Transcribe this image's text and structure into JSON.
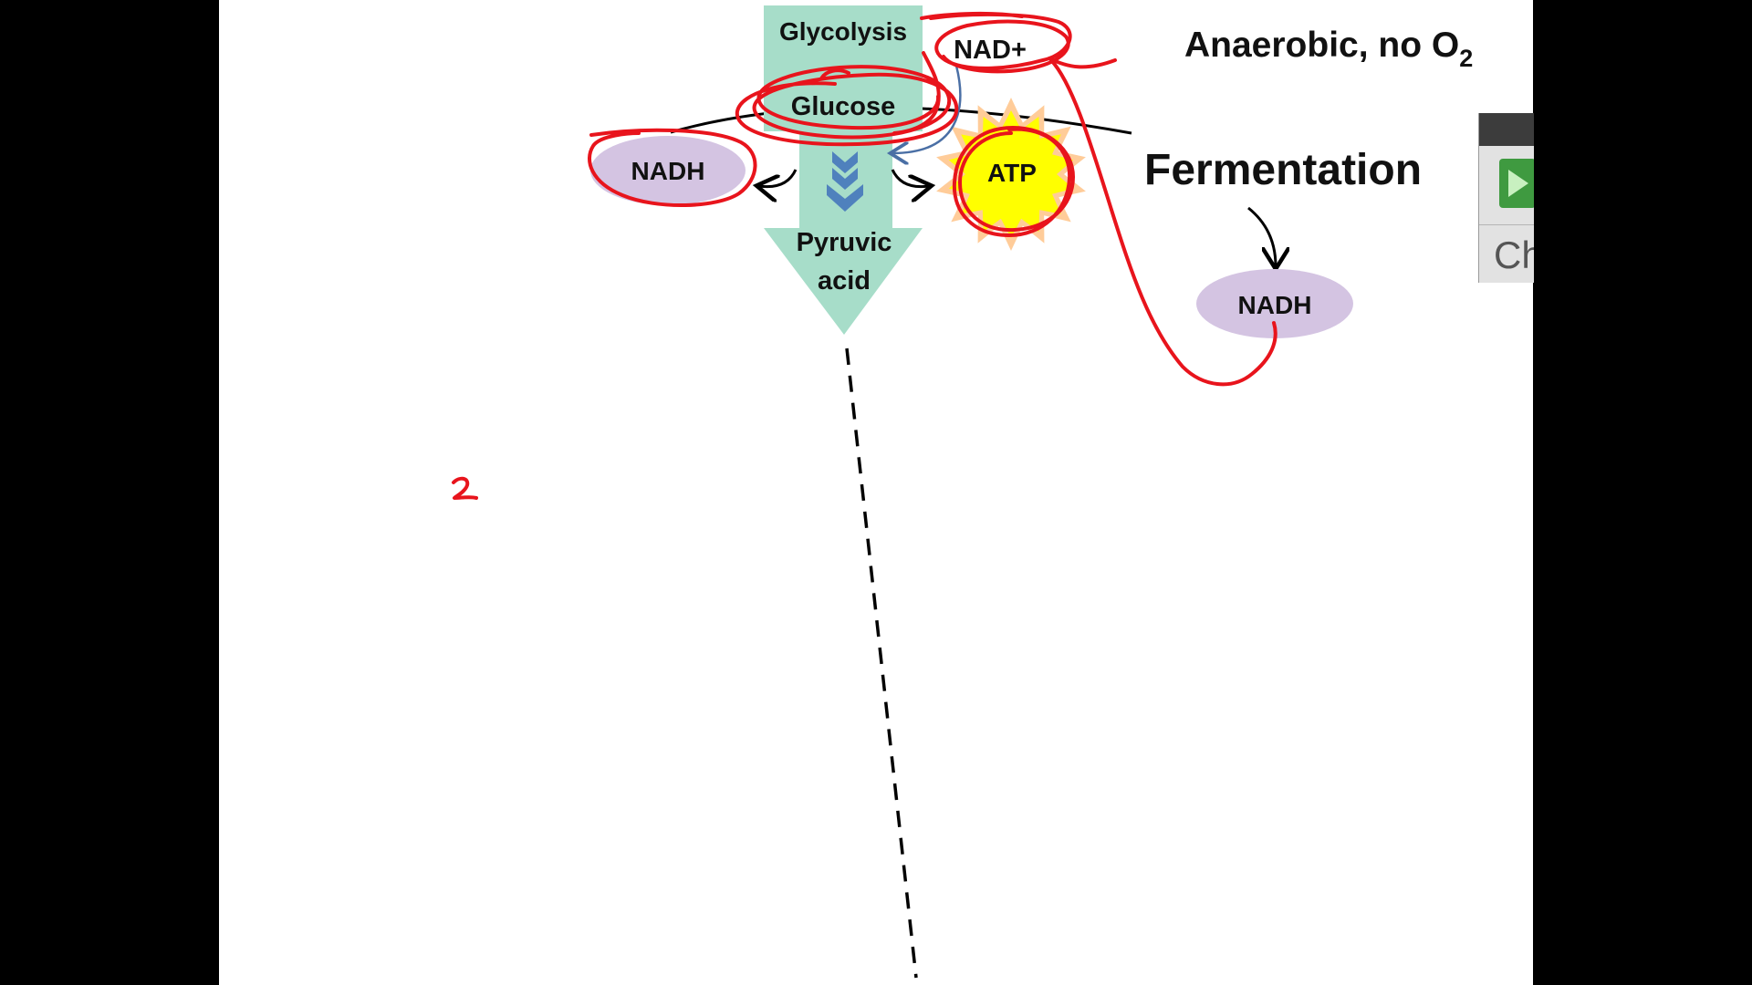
{
  "diagram": {
    "glycolysis_label": "Glycolysis",
    "glucose_label": "Glucose",
    "pyruvic_line1": "Pyruvic",
    "pyruvic_line2": "acid",
    "nadh_left_label": "NADH",
    "atp_label": "ATP",
    "nad_plus_label": "NAD+",
    "condition_label": "Anaerobic, no O",
    "condition_subscript": "2",
    "fermentation_label": "Fermentation",
    "nadh_right_label": "NADH",
    "handwritten_mark": "2"
  },
  "side_widget": {
    "partial_text": "Ch"
  },
  "colors": {
    "teal_arrow": "#a7ddc9",
    "lavender_oval": "#d4c4e2",
    "atp_yellow": "#ffff00",
    "annotation_red": "#e8141c",
    "blue_arrow": "#4f81bd",
    "curve_blue": "#4a6fa5"
  }
}
